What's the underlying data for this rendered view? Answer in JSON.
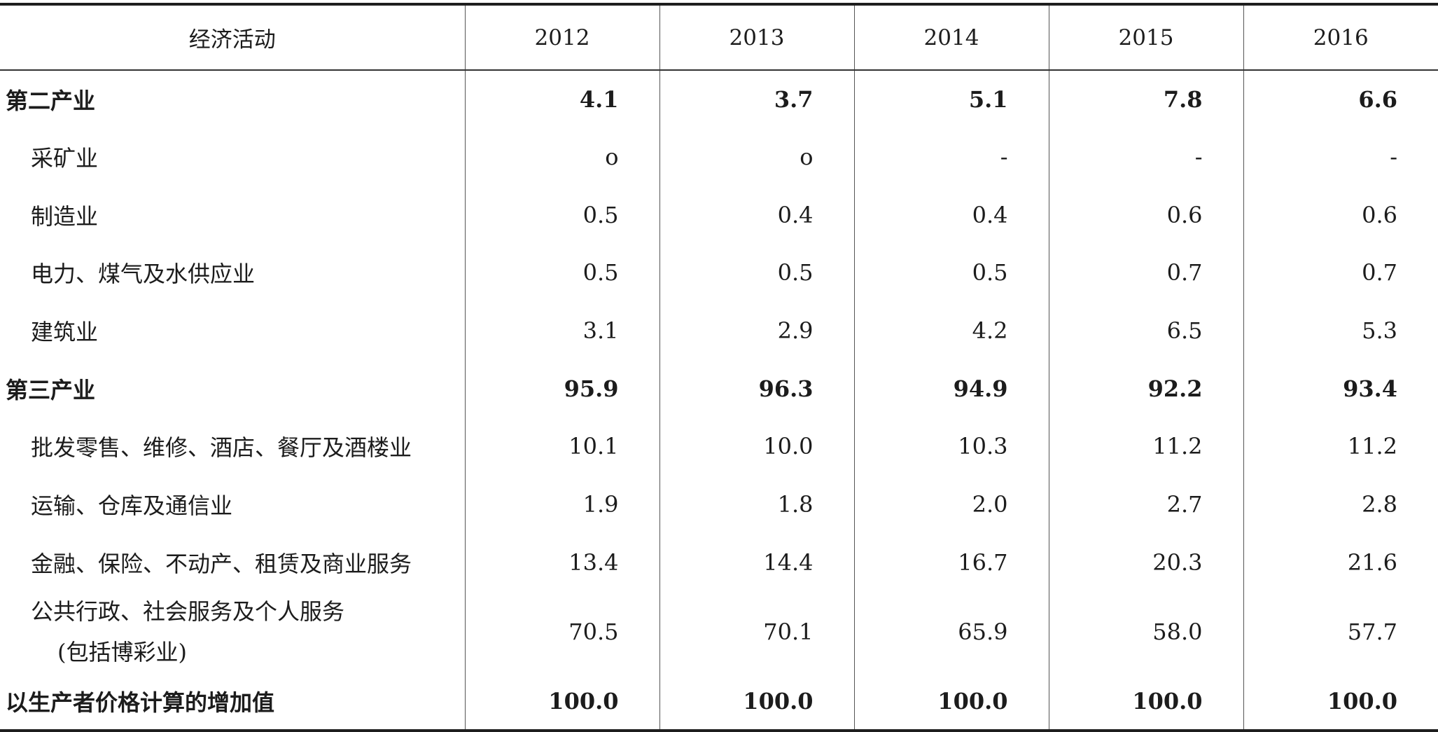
{
  "table": {
    "header": {
      "label": "经济活动",
      "years": [
        "2012",
        "2013",
        "2014",
        "2015",
        "2016"
      ]
    },
    "rows": [
      {
        "label": "第二产业",
        "values": [
          "4.1",
          "3.7",
          "5.1",
          "7.8",
          "6.6"
        ]
      },
      {
        "label": "采矿业",
        "values": [
          "o",
          "o",
          "-",
          "-",
          "-"
        ]
      },
      {
        "label": "制造业",
        "values": [
          "0.5",
          "0.4",
          "0.4",
          "0.6",
          "0.6"
        ]
      },
      {
        "label": "电力、煤气及水供应业",
        "values": [
          "0.5",
          "0.5",
          "0.5",
          "0.7",
          "0.7"
        ]
      },
      {
        "label": "建筑业",
        "values": [
          "3.1",
          "2.9",
          "4.2",
          "6.5",
          "5.3"
        ]
      },
      {
        "label": "第三产业",
        "values": [
          "95.9",
          "96.3",
          "94.9",
          "92.2",
          "93.4"
        ]
      },
      {
        "label": "批发零售、维修、酒店、餐厅及酒楼业",
        "values": [
          "10.1",
          "10.0",
          "10.3",
          "11.2",
          "11.2"
        ]
      },
      {
        "label": "运输、仓库及通信业",
        "values": [
          "1.9",
          "1.8",
          "2.0",
          "2.7",
          "2.8"
        ]
      },
      {
        "label": "金融、保险、不动产、租赁及商业服务",
        "values": [
          "13.4",
          "14.4",
          "16.7",
          "20.3",
          "21.6"
        ]
      },
      {
        "label": "公共行政、社会服务及个人服务",
        "label_line2": "(包括博彩业)",
        "values": [
          "70.5",
          "70.1",
          "65.9",
          "58.0",
          "57.7"
        ]
      },
      {
        "label": "以生产者价格计算的增加值",
        "values": [
          "100.0",
          "100.0",
          "100.0",
          "100.0",
          "100.0"
        ]
      }
    ]
  }
}
